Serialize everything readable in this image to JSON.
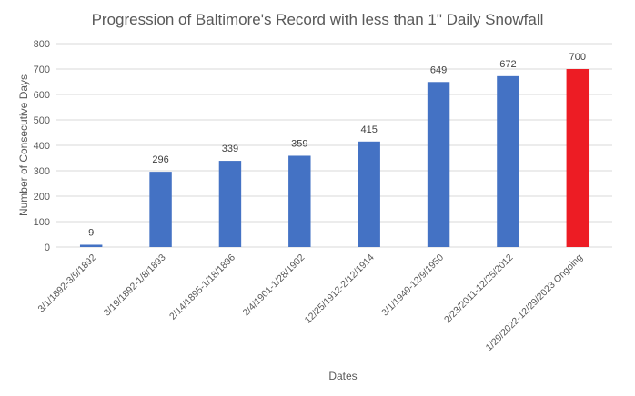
{
  "chart_data": {
    "type": "bar",
    "title": "Progression of Baltimore's Record with less than 1\" Daily Snowfall",
    "xlabel": "Dates",
    "ylabel": "Number of Consecutive Days",
    "ylim": [
      0,
      800
    ],
    "yticks": [
      0,
      100,
      200,
      300,
      400,
      500,
      600,
      700,
      800
    ],
    "grid": true,
    "legend": "none",
    "categories": [
      "3/1/1892-3/9/1892",
      "3/19/1892-1/8/1893",
      "2/14/1895-1/18/1896",
      "2/4/1901-1/28/1902",
      "12/25/1912-2/12/1914",
      "3/1/1949-12/9/1950",
      "2/23/2011-12/25/2012",
      "1/29/2022-12/29/2023 Ongoing"
    ],
    "values": [
      9,
      296,
      339,
      359,
      415,
      649,
      672,
      700
    ],
    "colors": [
      "#4472c4",
      "#4472c4",
      "#4472c4",
      "#4472c4",
      "#4472c4",
      "#4472c4",
      "#4472c4",
      "#ed1c24"
    ]
  }
}
